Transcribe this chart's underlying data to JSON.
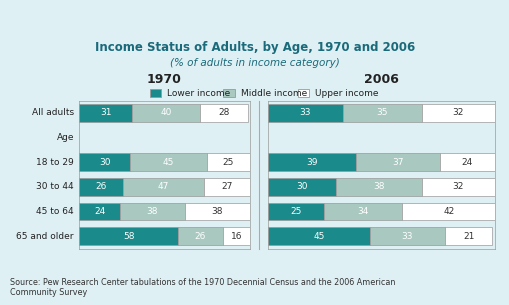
{
  "title": "Income Status of Adults, by Age, 1970 and 2006",
  "subtitle": "(% of adults in income category)",
  "source": "Source: Pew Research Center tabulations of the 1970 Decennial Census and the 2006 American\nCommunity Survey",
  "categories": [
    "All adults",
    "Age",
    "18 to 29",
    "30 to 44",
    "45 to 64",
    "65 and older"
  ],
  "year_labels": [
    "1970",
    "2006"
  ],
  "legend_labels": [
    "Lower income",
    "Middle income",
    "Upper income"
  ],
  "color_lower": "#1a8a8a",
  "color_middle": "#a8c8c0",
  "color_upper": "#ffffff",
  "data_1970": [
    [
      31,
      40,
      28
    ],
    [
      null,
      null,
      null
    ],
    [
      30,
      45,
      25
    ],
    [
      26,
      47,
      27
    ],
    [
      24,
      38,
      38
    ],
    [
      58,
      26,
      16
    ]
  ],
  "data_2006": [
    [
      33,
      35,
      32
    ],
    [
      null,
      null,
      null
    ],
    [
      39,
      37,
      24
    ],
    [
      30,
      38,
      32
    ],
    [
      25,
      34,
      42
    ],
    [
      45,
      33,
      21
    ]
  ],
  "bg_color": "#dff0f5",
  "bar_edge_color": "#999999",
  "bar_height": 0.72,
  "title_color": "#1a6a7a",
  "subtitle_color": "#1a6a7a",
  "label_color": "#222222",
  "source_color": "#333333"
}
